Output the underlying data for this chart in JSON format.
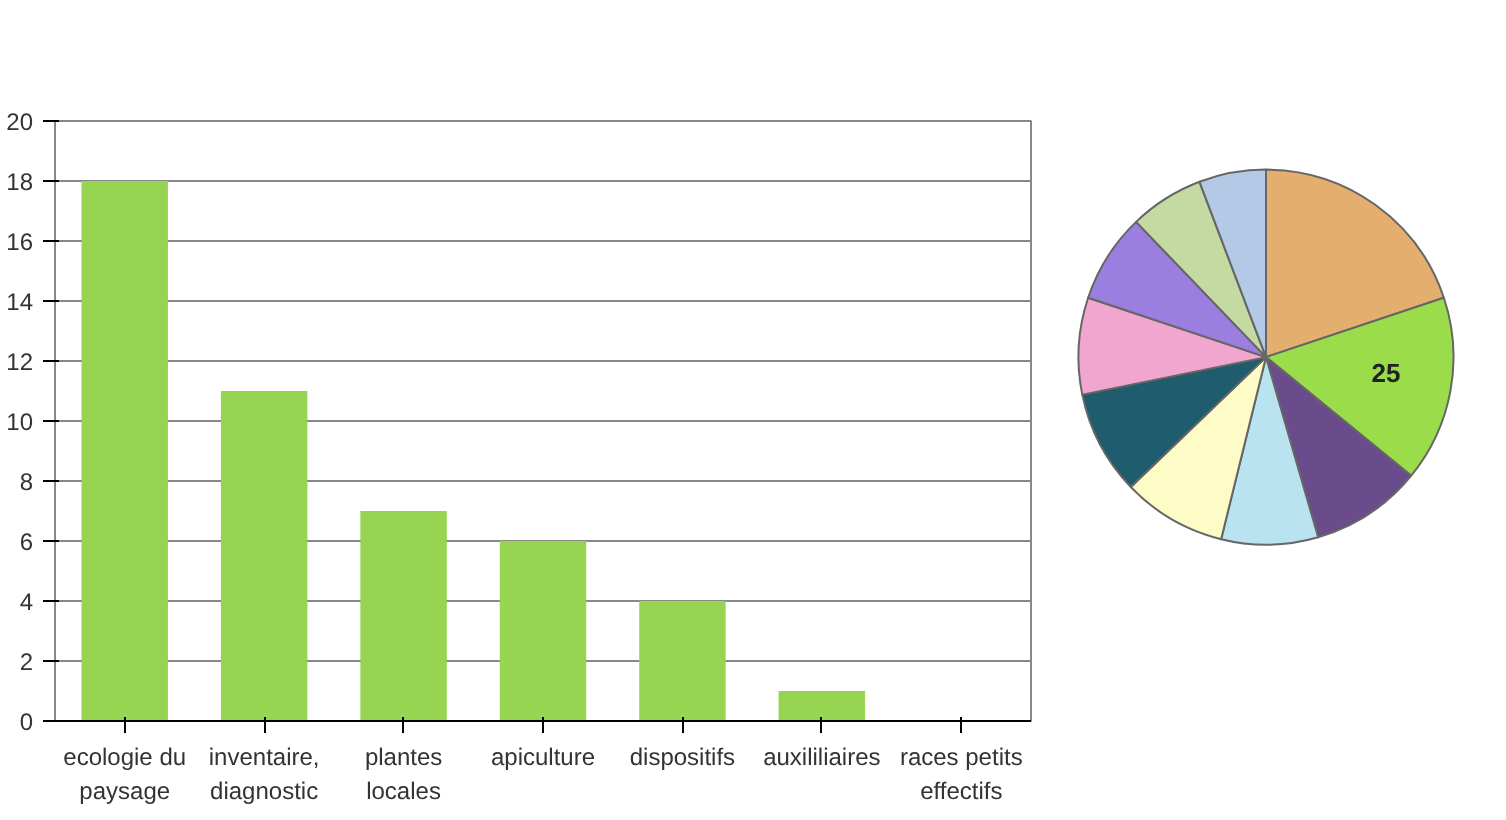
{
  "chart_data": [
    {
      "type": "bar",
      "categories": [
        "ecologie du paysage",
        "inventaire, diagnostic",
        "plantes locales",
        "apiculture",
        "dispositifs",
        "auxililiaires",
        "races petits effectifs"
      ],
      "values": [
        18,
        11,
        7,
        6,
        4,
        1,
        0
      ],
      "color": "#96d452",
      "ylim": [
        0,
        20
      ],
      "yticks": [
        0,
        2,
        4,
        6,
        8,
        10,
        12,
        14,
        16,
        18,
        20
      ],
      "grid": "y"
    },
    {
      "type": "pie",
      "categories": [
        null,
        null,
        null,
        null,
        null,
        null,
        null,
        null,
        null,
        null
      ],
      "values": [
        31,
        25,
        15,
        13,
        14,
        14,
        13,
        12,
        10,
        9
      ],
      "colors": [
        "#e3ae6e",
        "#9bdc4a",
        "#6a4c8c",
        "#b9e3f0",
        "#fdfbc6",
        "#1f5c6e",
        "#f0a6cf",
        "#9a7ee0",
        "#c5d9a2",
        "#b3c9e6"
      ],
      "value_labels": [
        null,
        "25",
        null,
        null,
        null,
        null,
        null,
        null,
        null,
        null
      ]
    }
  ]
}
